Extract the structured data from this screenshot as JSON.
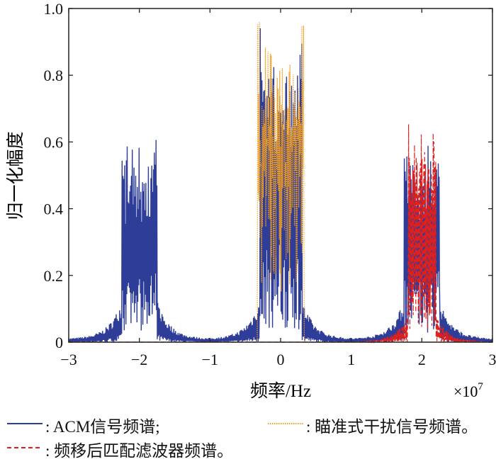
{
  "chart_data": {
    "type": "line",
    "xlabel": "频率/Hz",
    "ylabel": "归一化幅度",
    "x_multiplier": "×10",
    "x_multiplier_exp": "7",
    "xlim": [
      -3,
      3
    ],
    "ylim": [
      0,
      1
    ],
    "xticks": [
      -3,
      -2,
      -1,
      0,
      1,
      2,
      3
    ],
    "xtick_labels": [
      "−3",
      "−2",
      "−1",
      "0",
      "1",
      "2",
      "3"
    ],
    "yticks": [
      0,
      0.2,
      0.4,
      0.6,
      0.8,
      1.0
    ],
    "ytick_labels": [
      "0",
      "0.2",
      "0.4",
      "0.6",
      "0.8",
      "1.0"
    ],
    "grid": false,
    "series": [
      {
        "name": "ACM信号频谱",
        "color": "#2e3d98",
        "style": "solid",
        "bands": [
          {
            "start": -2.25,
            "end": -1.75,
            "level": 0.53,
            "edge_peak": 0.61
          },
          {
            "start": -0.3,
            "end": 0.3,
            "level": 0.78,
            "edge_peak": 0.98
          },
          {
            "start": 1.75,
            "end": 2.25,
            "level": 0.53,
            "edge_peak": 0.61
          }
        ],
        "floor": 0.01,
        "skirt": 0.12
      },
      {
        "name": "瞄准式干扰信号频谱",
        "color": "#f5a020",
        "style": "dotted",
        "bands": [
          {
            "start": -0.33,
            "end": 0.33,
            "level": 0.8,
            "edge_peak": 0.97
          }
        ],
        "floor": 0.0,
        "skirt": 0.0
      },
      {
        "name": "频移后匹配滤波器频谱",
        "color": "#e0201c",
        "style": "dashed",
        "bands": [
          {
            "start": 1.8,
            "end": 2.2,
            "level": 0.6,
            "edge_peak": 0.68
          }
        ],
        "floor": 0.0,
        "skirt": 0.08
      }
    ],
    "legend": {
      "placement": "bottom",
      "entries": [
        ": ACM信号频谱;",
        ": 瞄准式干扰信号频谱。",
        ": 频移后匹配滤波器频谱。"
      ]
    }
  }
}
